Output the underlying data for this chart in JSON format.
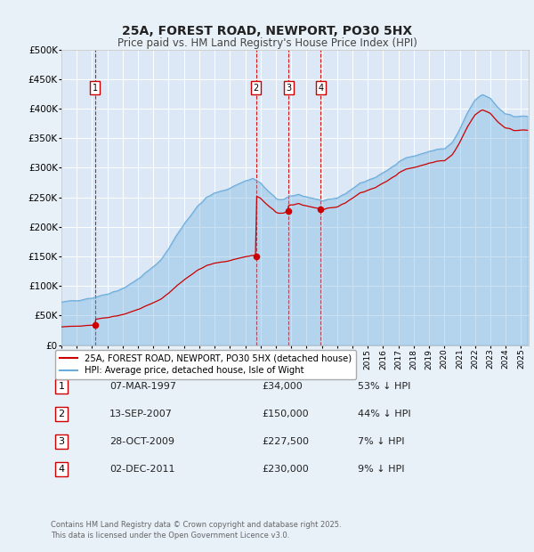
{
  "title": "25A, FOREST ROAD, NEWPORT, PO30 5HX",
  "subtitle": "Price paid vs. HM Land Registry's House Price Index (HPI)",
  "ylim": [
    0,
    500000
  ],
  "yticks": [
    0,
    50000,
    100000,
    150000,
    200000,
    250000,
    300000,
    350000,
    400000,
    450000,
    500000
  ],
  "background_color": "#e8f0f8",
  "plot_bg_color": "#dce8f5",
  "grid_color": "#ffffff",
  "sale_color": "#cc0000",
  "hpi_color": "#6aacdc",
  "sale_dates": [
    1997.18,
    2007.71,
    2009.83,
    2011.92
  ],
  "sale_prices": [
    34000,
    150000,
    227500,
    230000
  ],
  "sale_labels": [
    "1",
    "2",
    "3",
    "4"
  ],
  "legend_sale_label": "25A, FOREST ROAD, NEWPORT, PO30 5HX (detached house)",
  "legend_hpi_label": "HPI: Average price, detached house, Isle of Wight",
  "table_rows": [
    [
      "1",
      "07-MAR-1997",
      "£34,000",
      "53% ↓ HPI"
    ],
    [
      "2",
      "13-SEP-2007",
      "£150,000",
      "44% ↓ HPI"
    ],
    [
      "3",
      "28-OCT-2009",
      "£227,500",
      "7% ↓ HPI"
    ],
    [
      "4",
      "02-DEC-2011",
      "£230,000",
      "9% ↓ HPI"
    ]
  ],
  "footnote": "Contains HM Land Registry data © Crown copyright and database right 2025.\nThis data is licensed under the Open Government Licence v3.0.",
  "xmin": 1995.0,
  "xmax": 2025.5,
  "xtick_years": [
    1995,
    1996,
    1997,
    1998,
    1999,
    2000,
    2001,
    2002,
    2003,
    2004,
    2005,
    2006,
    2007,
    2008,
    2009,
    2010,
    2011,
    2012,
    2013,
    2014,
    2015,
    2016,
    2017,
    2018,
    2019,
    2020,
    2021,
    2022,
    2023,
    2024,
    2025
  ]
}
